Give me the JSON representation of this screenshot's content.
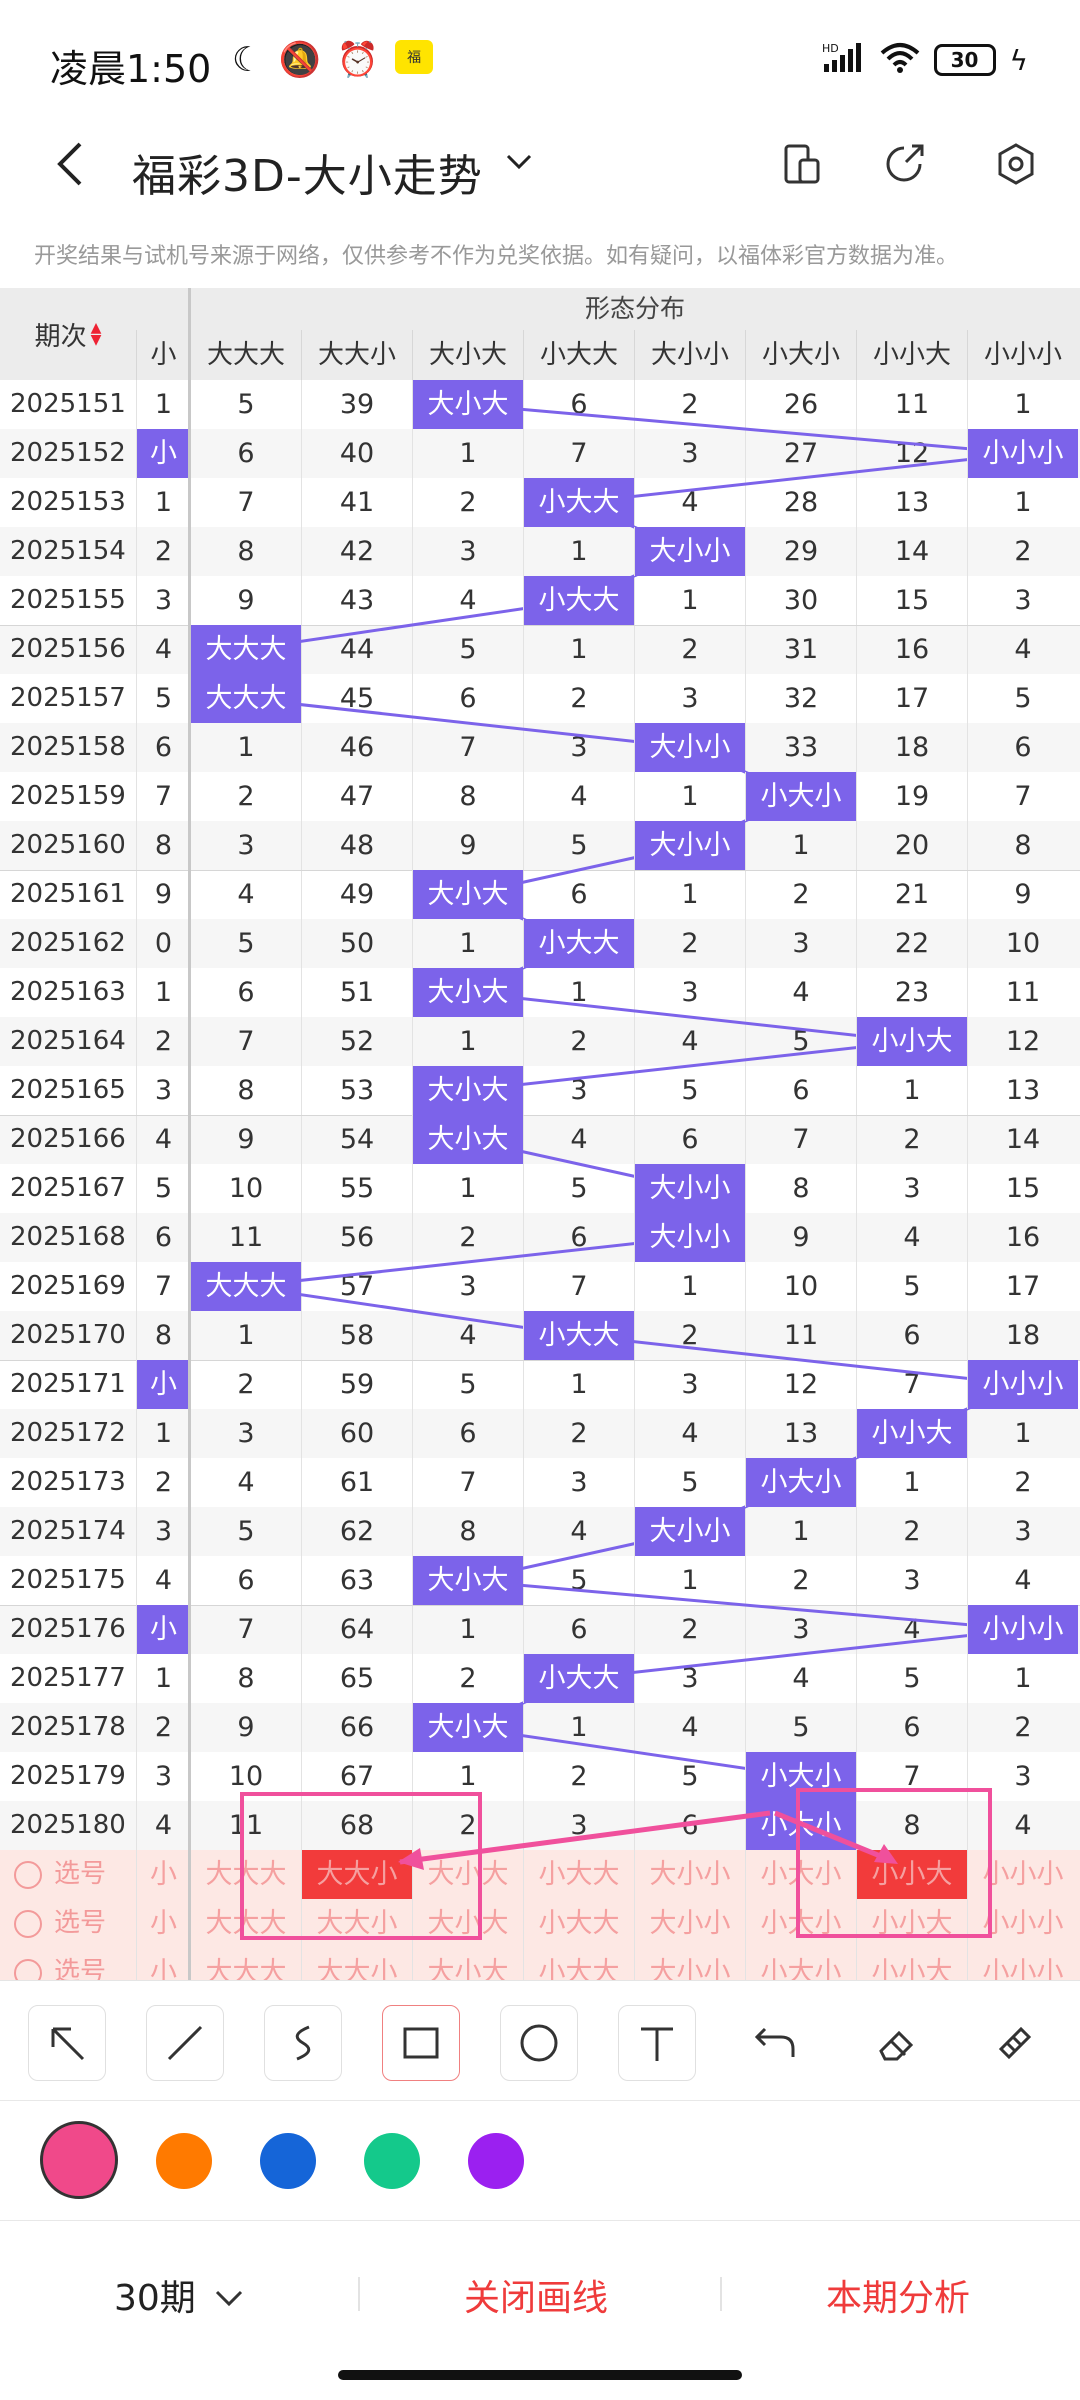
{
  "status_bar": {
    "time": "凌晨1:50",
    "badge": "福",
    "hd": "HD",
    "battery": "30"
  },
  "header": {
    "title": "福彩3D-大小走势"
  },
  "notice": "开奖结果与试机号来源于网络，仅供参考不作为兑奖依据。如有疑问，以福体彩官方数据为准。",
  "table": {
    "issue_header": "期次",
    "group_header": "形态分布",
    "partial_header": "小",
    "columns": [
      "大大大",
      "大大小",
      "大小大",
      "小大大",
      "大小小",
      "小大小",
      "小小大",
      "小小小"
    ],
    "rows": [
      {
        "issue": "2025151",
        "lead": "1",
        "cells": [
          "5",
          "39",
          "大小大",
          "6",
          "2",
          "26",
          "11",
          "1"
        ],
        "hit": 2
      },
      {
        "issue": "2025152",
        "lead": "小",
        "cells": [
          "6",
          "40",
          "1",
          "7",
          "3",
          "27",
          "12",
          "小小小"
        ],
        "hit": 7,
        "lead_hit": true
      },
      {
        "issue": "2025153",
        "lead": "1",
        "cells": [
          "7",
          "41",
          "2",
          "小大大",
          "4",
          "28",
          "13",
          "1"
        ],
        "hit": 3
      },
      {
        "issue": "2025154",
        "lead": "2",
        "cells": [
          "8",
          "42",
          "3",
          "1",
          "大小小",
          "29",
          "14",
          "2"
        ],
        "hit": 4
      },
      {
        "issue": "2025155",
        "lead": "3",
        "cells": [
          "9",
          "43",
          "4",
          "小大大",
          "1",
          "30",
          "15",
          "3"
        ],
        "hit": 3
      },
      {
        "issue": "2025156",
        "lead": "4",
        "cells": [
          "大大大",
          "44",
          "5",
          "1",
          "2",
          "31",
          "16",
          "4"
        ],
        "hit": 0
      },
      {
        "issue": "2025157",
        "lead": "5",
        "cells": [
          "大大大",
          "45",
          "6",
          "2",
          "3",
          "32",
          "17",
          "5"
        ],
        "hit": 0
      },
      {
        "issue": "2025158",
        "lead": "6",
        "cells": [
          "1",
          "46",
          "7",
          "3",
          "大小小",
          "33",
          "18",
          "6"
        ],
        "hit": 4
      },
      {
        "issue": "2025159",
        "lead": "7",
        "cells": [
          "2",
          "47",
          "8",
          "4",
          "1",
          "小大小",
          "19",
          "7"
        ],
        "hit": 5
      },
      {
        "issue": "2025160",
        "lead": "8",
        "cells": [
          "3",
          "48",
          "9",
          "5",
          "大小小",
          "1",
          "20",
          "8"
        ],
        "hit": 4
      },
      {
        "issue": "2025161",
        "lead": "9",
        "cells": [
          "4",
          "49",
          "大小大",
          "6",
          "1",
          "2",
          "21",
          "9"
        ],
        "hit": 2
      },
      {
        "issue": "2025162",
        "lead": "0",
        "cells": [
          "5",
          "50",
          "1",
          "小大大",
          "2",
          "3",
          "22",
          "10"
        ],
        "hit": 3
      },
      {
        "issue": "2025163",
        "lead": "1",
        "cells": [
          "6",
          "51",
          "大小大",
          "1",
          "3",
          "4",
          "23",
          "11"
        ],
        "hit": 2
      },
      {
        "issue": "2025164",
        "lead": "2",
        "cells": [
          "7",
          "52",
          "1",
          "2",
          "4",
          "5",
          "小小大",
          "12"
        ],
        "hit": 6
      },
      {
        "issue": "2025165",
        "lead": "3",
        "cells": [
          "8",
          "53",
          "大小大",
          "3",
          "5",
          "6",
          "1",
          "13"
        ],
        "hit": 2
      },
      {
        "issue": "2025166",
        "lead": "4",
        "cells": [
          "9",
          "54",
          "大小大",
          "4",
          "6",
          "7",
          "2",
          "14"
        ],
        "hit": 2
      },
      {
        "issue": "2025167",
        "lead": "5",
        "cells": [
          "10",
          "55",
          "1",
          "5",
          "大小小",
          "8",
          "3",
          "15"
        ],
        "hit": 4
      },
      {
        "issue": "2025168",
        "lead": "6",
        "cells": [
          "11",
          "56",
          "2",
          "6",
          "大小小",
          "9",
          "4",
          "16"
        ],
        "hit": 4
      },
      {
        "issue": "2025169",
        "lead": "7",
        "cells": [
          "大大大",
          "57",
          "3",
          "7",
          "1",
          "10",
          "5",
          "17"
        ],
        "hit": 0
      },
      {
        "issue": "2025170",
        "lead": "8",
        "cells": [
          "1",
          "58",
          "4",
          "小大大",
          "2",
          "11",
          "6",
          "18"
        ],
        "hit": 3
      },
      {
        "issue": "2025171",
        "lead": "小",
        "cells": [
          "2",
          "59",
          "5",
          "1",
          "3",
          "12",
          "7",
          "小小小"
        ],
        "hit": 7,
        "lead_hit": true
      },
      {
        "issue": "2025172",
        "lead": "1",
        "cells": [
          "3",
          "60",
          "6",
          "2",
          "4",
          "13",
          "小小大",
          "1"
        ],
        "hit": 6
      },
      {
        "issue": "2025173",
        "lead": "2",
        "cells": [
          "4",
          "61",
          "7",
          "3",
          "5",
          "小大小",
          "1",
          "2"
        ],
        "hit": 5
      },
      {
        "issue": "2025174",
        "lead": "3",
        "cells": [
          "5",
          "62",
          "8",
          "4",
          "大小小",
          "1",
          "2",
          "3"
        ],
        "hit": 4
      },
      {
        "issue": "2025175",
        "lead": "4",
        "cells": [
          "6",
          "63",
          "大小大",
          "5",
          "1",
          "2",
          "3",
          "4"
        ],
        "hit": 2
      },
      {
        "issue": "2025176",
        "lead": "小",
        "cells": [
          "7",
          "64",
          "1",
          "6",
          "2",
          "3",
          "4",
          "小小小"
        ],
        "hit": 7,
        "lead_hit": true
      },
      {
        "issue": "2025177",
        "lead": "1",
        "cells": [
          "8",
          "65",
          "2",
          "小大大",
          "3",
          "4",
          "5",
          "1"
        ],
        "hit": 3
      },
      {
        "issue": "2025178",
        "lead": "2",
        "cells": [
          "9",
          "66",
          "大小大",
          "1",
          "4",
          "5",
          "6",
          "2"
        ],
        "hit": 2
      },
      {
        "issue": "2025179",
        "lead": "3",
        "cells": [
          "10",
          "67",
          "1",
          "2",
          "5",
          "小大小",
          "7",
          "3"
        ],
        "hit": 5
      },
      {
        "issue": "2025180",
        "lead": "4",
        "cells": [
          "11",
          "68",
          "2",
          "3",
          "6",
          "小大小",
          "8",
          "4"
        ],
        "hit": 5
      }
    ],
    "select_label": "选号",
    "select_rows": [
      {
        "lead": "小",
        "cells": [
          "大大大",
          "大大小",
          "大小大",
          "小大大",
          "大小小",
          "小大小",
          "小小大",
          "小小小"
        ],
        "red": [
          1,
          6
        ]
      },
      {
        "lead": "小",
        "cells": [
          "大大大",
          "大大小",
          "大小大",
          "小大大",
          "大小小",
          "小大小",
          "小小大",
          "小小小"
        ],
        "red": []
      },
      {
        "lead": "小",
        "cells": [
          "大大大",
          "大大小",
          "大小大",
          "小大大",
          "大小小",
          "小大小",
          "小小大",
          "小小小"
        ],
        "red": []
      }
    ]
  },
  "toolbar": {
    "tools": [
      "arrow-tool",
      "line-tool",
      "freehand-tool",
      "rectangle-tool",
      "circle-tool",
      "text-tool",
      "undo-tool",
      "eraser-tool",
      "clear-tool"
    ],
    "active": "rectangle-tool"
  },
  "colors": [
    "#f0498a",
    "#ff7a00",
    "#1565d8",
    "#14c98b",
    "#9b20f0"
  ],
  "bottom": {
    "period": "30期",
    "close_draw": "关闭画线",
    "analysis": "本期分析"
  },
  "style": {
    "accent": "#7c63ea",
    "red": "#f23b3b",
    "pink": "#f0509c"
  }
}
